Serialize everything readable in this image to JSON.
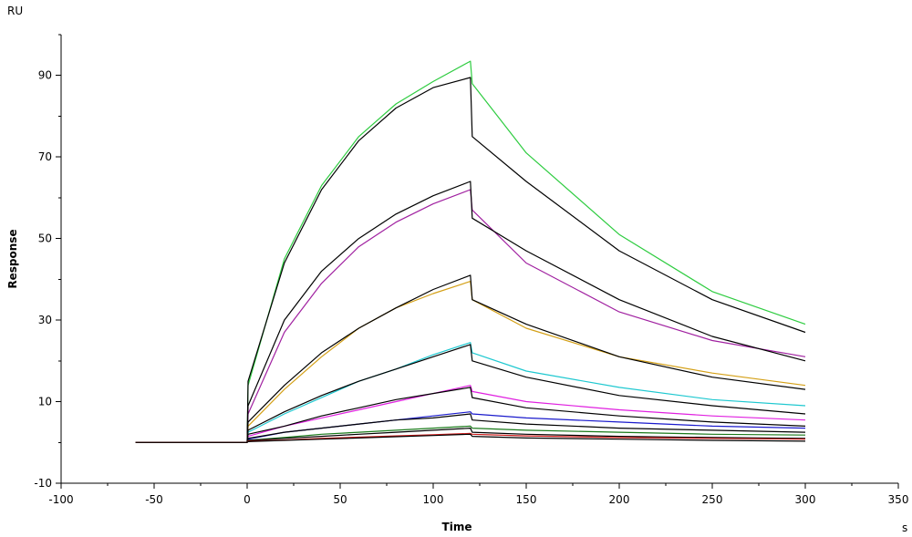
{
  "chart_data": {
    "type": "line",
    "title": "",
    "xlabel": "Time",
    "ylabel": "Response",
    "x_unit": "s",
    "y_unit": "RU",
    "xlim": [
      -100,
      350
    ],
    "ylim": [
      -10,
      100
    ],
    "x_ticks": [
      -100,
      -50,
      0,
      50,
      100,
      150,
      200,
      250,
      300,
      350
    ],
    "y_ticks": [
      -10,
      10,
      30,
      50,
      70,
      90
    ],
    "grid": false,
    "legend": "none",
    "association_start": 0,
    "dissociation_start": 120,
    "end_time": 300,
    "baseline_start": -60,
    "series": [
      {
        "color": "#2ecc40",
        "points": [
          [
            -60,
            0
          ],
          [
            0,
            0
          ],
          [
            0.5,
            14
          ],
          [
            20,
            45
          ],
          [
            40,
            63
          ],
          [
            60,
            75
          ],
          [
            80,
            83
          ],
          [
            100,
            88.5
          ],
          [
            120,
            93.5
          ],
          [
            121,
            88
          ],
          [
            150,
            71
          ],
          [
            200,
            51
          ],
          [
            250,
            37
          ],
          [
            300,
            29
          ]
        ]
      },
      {
        "color": "#000000",
        "points": [
          [
            -60,
            0
          ],
          [
            0,
            0
          ],
          [
            0.5,
            15
          ],
          [
            20,
            44
          ],
          [
            40,
            62
          ],
          [
            60,
            74
          ],
          [
            80,
            82
          ],
          [
            100,
            87
          ],
          [
            120,
            89.5
          ],
          [
            121,
            75
          ],
          [
            150,
            64
          ],
          [
            200,
            47
          ],
          [
            250,
            35
          ],
          [
            300,
            27
          ]
        ]
      },
      {
        "color": "#a020a0",
        "points": [
          [
            -60,
            0
          ],
          [
            0,
            0
          ],
          [
            0.5,
            7
          ],
          [
            20,
            27
          ],
          [
            40,
            39
          ],
          [
            60,
            48
          ],
          [
            80,
            54
          ],
          [
            100,
            58.5
          ],
          [
            120,
            62
          ],
          [
            121,
            57
          ],
          [
            150,
            44
          ],
          [
            200,
            32
          ],
          [
            250,
            25
          ],
          [
            300,
            21
          ]
        ]
      },
      {
        "color": "#000000",
        "points": [
          [
            -60,
            0
          ],
          [
            0,
            0
          ],
          [
            0.5,
            9
          ],
          [
            20,
            30
          ],
          [
            40,
            42
          ],
          [
            60,
            50
          ],
          [
            80,
            56
          ],
          [
            100,
            60.5
          ],
          [
            120,
            64
          ],
          [
            121,
            55
          ],
          [
            150,
            47
          ],
          [
            200,
            35
          ],
          [
            250,
            26
          ],
          [
            300,
            20
          ]
        ]
      },
      {
        "color": "#d4a017",
        "points": [
          [
            -60,
            0
          ],
          [
            0,
            0
          ],
          [
            0.5,
            4
          ],
          [
            20,
            13
          ],
          [
            40,
            21
          ],
          [
            60,
            28
          ],
          [
            80,
            33
          ],
          [
            100,
            36.5
          ],
          [
            120,
            39.5
          ],
          [
            121,
            35
          ],
          [
            150,
            28
          ],
          [
            200,
            21
          ],
          [
            250,
            17
          ],
          [
            300,
            14
          ]
        ]
      },
      {
        "color": "#000000",
        "points": [
          [
            -60,
            0
          ],
          [
            0,
            0
          ],
          [
            0.5,
            5
          ],
          [
            20,
            14
          ],
          [
            40,
            22
          ],
          [
            60,
            28
          ],
          [
            80,
            33
          ],
          [
            100,
            37.5
          ],
          [
            120,
            41
          ],
          [
            121,
            35
          ],
          [
            150,
            29
          ],
          [
            200,
            21
          ],
          [
            250,
            16
          ],
          [
            300,
            13
          ]
        ]
      },
      {
        "color": "#1ec8d0",
        "points": [
          [
            -60,
            0
          ],
          [
            0,
            0
          ],
          [
            0.5,
            2.5
          ],
          [
            20,
            7
          ],
          [
            40,
            11
          ],
          [
            60,
            15
          ],
          [
            80,
            18
          ],
          [
            100,
            21.5
          ],
          [
            120,
            24.5
          ],
          [
            121,
            22
          ],
          [
            150,
            17.5
          ],
          [
            200,
            13.5
          ],
          [
            250,
            10.5
          ],
          [
            300,
            9
          ]
        ]
      },
      {
        "color": "#000000",
        "points": [
          [
            -60,
            0
          ],
          [
            0,
            0
          ],
          [
            0.5,
            3
          ],
          [
            20,
            7.5
          ],
          [
            40,
            11.5
          ],
          [
            60,
            15
          ],
          [
            80,
            18
          ],
          [
            100,
            21
          ],
          [
            120,
            24
          ],
          [
            121,
            20
          ],
          [
            150,
            16
          ],
          [
            200,
            11.5
          ],
          [
            250,
            9
          ],
          [
            300,
            7
          ]
        ]
      },
      {
        "color": "#e020e0",
        "points": [
          [
            -60,
            0
          ],
          [
            0,
            0
          ],
          [
            0.5,
            1.5
          ],
          [
            20,
            4
          ],
          [
            40,
            6
          ],
          [
            60,
            8
          ],
          [
            80,
            10
          ],
          [
            100,
            12
          ],
          [
            120,
            14
          ],
          [
            121,
            12.5
          ],
          [
            150,
            10
          ],
          [
            200,
            8
          ],
          [
            250,
            6.5
          ],
          [
            300,
            5.5
          ]
        ]
      },
      {
        "color": "#000000",
        "points": [
          [
            -60,
            0
          ],
          [
            0,
            0
          ],
          [
            0.5,
            2
          ],
          [
            20,
            4
          ],
          [
            40,
            6.5
          ],
          [
            60,
            8.5
          ],
          [
            80,
            10.5
          ],
          [
            100,
            12
          ],
          [
            120,
            13.5
          ],
          [
            121,
            11
          ],
          [
            150,
            8.5
          ],
          [
            200,
            6.5
          ],
          [
            250,
            5
          ],
          [
            300,
            4
          ]
        ]
      },
      {
        "color": "#1a1acc",
        "points": [
          [
            -60,
            0
          ],
          [
            0,
            0
          ],
          [
            0.5,
            0.8
          ],
          [
            20,
            2.5
          ],
          [
            40,
            3.5
          ],
          [
            60,
            4.5
          ],
          [
            80,
            5.5
          ],
          [
            100,
            6.5
          ],
          [
            120,
            7.5
          ],
          [
            121,
            7
          ],
          [
            150,
            6
          ],
          [
            200,
            5
          ],
          [
            250,
            4
          ],
          [
            300,
            3.5
          ]
        ]
      },
      {
        "color": "#000000",
        "points": [
          [
            -60,
            0
          ],
          [
            0,
            0
          ],
          [
            0.5,
            1
          ],
          [
            20,
            2.5
          ],
          [
            40,
            3.5
          ],
          [
            60,
            4.5
          ],
          [
            80,
            5.5
          ],
          [
            100,
            6
          ],
          [
            120,
            7
          ],
          [
            121,
            5.5
          ],
          [
            150,
            4.5
          ],
          [
            200,
            3.5
          ],
          [
            250,
            3
          ],
          [
            300,
            2.5
          ]
        ]
      },
      {
        "color": "#1a7a1a",
        "points": [
          [
            -60,
            0
          ],
          [
            0,
            0
          ],
          [
            0.5,
            0.5
          ],
          [
            20,
            1.2
          ],
          [
            40,
            2
          ],
          [
            60,
            2.5
          ],
          [
            80,
            3
          ],
          [
            100,
            3.5
          ],
          [
            120,
            4
          ],
          [
            121,
            3.5
          ],
          [
            150,
            3
          ],
          [
            200,
            2.5
          ],
          [
            250,
            2
          ],
          [
            300,
            1.8
          ]
        ]
      },
      {
        "color": "#000000",
        "points": [
          [
            -60,
            0
          ],
          [
            0,
            0
          ],
          [
            0.5,
            0.5
          ],
          [
            20,
            1
          ],
          [
            40,
            1.5
          ],
          [
            60,
            2
          ],
          [
            80,
            2.5
          ],
          [
            100,
            3
          ],
          [
            120,
            3.5
          ],
          [
            121,
            2.5
          ],
          [
            150,
            2
          ],
          [
            200,
            1.5
          ],
          [
            250,
            1.2
          ],
          [
            300,
            1
          ]
        ]
      },
      {
        "color": "#cc1a1a",
        "points": [
          [
            -60,
            0
          ],
          [
            0,
            0
          ],
          [
            0.5,
            0.3
          ],
          [
            20,
            0.6
          ],
          [
            40,
            1
          ],
          [
            60,
            1.3
          ],
          [
            80,
            1.6
          ],
          [
            100,
            1.9
          ],
          [
            120,
            2.2
          ],
          [
            121,
            2
          ],
          [
            150,
            1.6
          ],
          [
            200,
            1.2
          ],
          [
            250,
            1
          ],
          [
            300,
            0.8
          ]
        ]
      },
      {
        "color": "#000000",
        "points": [
          [
            -60,
            0
          ],
          [
            0,
            0
          ],
          [
            0.5,
            0.2
          ],
          [
            20,
            0.5
          ],
          [
            40,
            0.8
          ],
          [
            60,
            1.1
          ],
          [
            80,
            1.4
          ],
          [
            100,
            1.7
          ],
          [
            120,
            2
          ],
          [
            121,
            1.5
          ],
          [
            150,
            1.1
          ],
          [
            200,
            0.8
          ],
          [
            250,
            0.5
          ],
          [
            300,
            0.3
          ]
        ]
      }
    ]
  }
}
